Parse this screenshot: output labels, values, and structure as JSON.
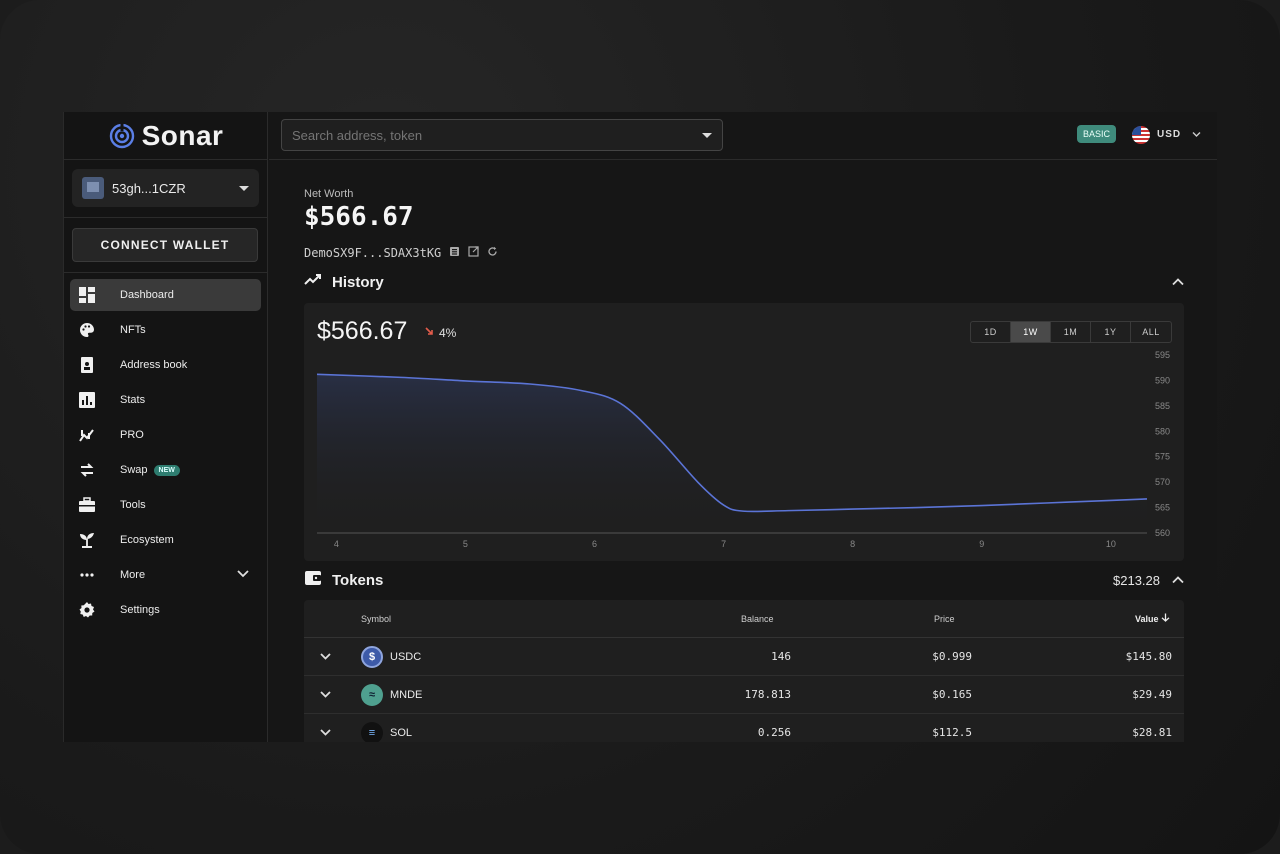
{
  "app": {
    "logo_text": "Sonar",
    "colors": {
      "accent": "#3f8b7c",
      "chart_line": "#5b74d6",
      "negative": "#e25c4b"
    }
  },
  "sidebar": {
    "wallet_name": "53gh...1CZR",
    "connect_label": "CONNECT WALLET",
    "items": [
      {
        "label": "Dashboard",
        "icon": "dashboard-icon",
        "active": true
      },
      {
        "label": "NFTs",
        "icon": "palette-icon"
      },
      {
        "label": "Address book",
        "icon": "address-book-icon"
      },
      {
        "label": "Stats",
        "icon": "stats-icon"
      },
      {
        "label": "PRO",
        "icon": "pro-chart-icon"
      },
      {
        "label": "Swap",
        "icon": "swap-icon",
        "badge": "NEW"
      },
      {
        "label": "Tools",
        "icon": "toolbox-icon"
      },
      {
        "label": "Ecosystem",
        "icon": "sprout-icon"
      },
      {
        "label": "More",
        "icon": "more-icon"
      },
      {
        "label": "Settings",
        "icon": "gear-icon"
      }
    ]
  },
  "topbar": {
    "search_placeholder": "Search address, token",
    "plan_badge": "BASIC",
    "currency": "USD"
  },
  "networth": {
    "label": "Net Worth",
    "value": "$566.67",
    "address": "DemoSX9F...SDAX3tKG"
  },
  "history": {
    "title": "History",
    "current_value": "$566.67",
    "change": "4%",
    "ranges": [
      "1D",
      "1W",
      "1M",
      "1Y",
      "ALL"
    ],
    "active_range": "1W"
  },
  "chart_data": {
    "type": "area",
    "title": "",
    "xlabel": "",
    "ylabel": "",
    "x_ticks": [
      "4",
      "5",
      "6",
      "7",
      "8",
      "9",
      "10"
    ],
    "y_ticks": [
      "595",
      "590",
      "585",
      "580",
      "575",
      "570",
      "565",
      "560"
    ],
    "ylim": [
      560,
      595
    ],
    "xlim": [
      3.85,
      10.28
    ],
    "series": [
      {
        "x": [
          3.85,
          4.5,
          5.0,
          5.5,
          5.9,
          6.2,
          6.5,
          6.8,
          7.0,
          7.15,
          7.5,
          8.0,
          8.5,
          9.0,
          9.5,
          10.0,
          10.28
        ],
        "y": [
          591.2,
          590.6,
          589.9,
          589.3,
          588.0,
          585.5,
          578.5,
          570.0,
          565.5,
          564.3,
          564.4,
          564.7,
          565.0,
          565.4,
          565.9,
          566.4,
          566.7
        ]
      }
    ],
    "grid": false,
    "legend": "none"
  },
  "tokens": {
    "title": "Tokens",
    "total": "$213.28",
    "headers": {
      "symbol": "Symbol",
      "balance": "Balance",
      "price": "Price",
      "value": "Value"
    },
    "rows": [
      {
        "symbol": "USDC",
        "balance": "146",
        "price": "$0.999",
        "value": "$145.80",
        "icon_color": "#3d5aa8",
        "icon_glyph": "$"
      },
      {
        "symbol": "MNDE",
        "balance": "178.813",
        "price": "$0.165",
        "value": "$29.49",
        "icon_color": "#4fa08f",
        "icon_glyph": "≈"
      },
      {
        "symbol": "SOL",
        "balance": "0.256",
        "price": "$112.5",
        "value": "$28.81",
        "icon_color": "#111111",
        "icon_glyph": "≡"
      }
    ]
  }
}
